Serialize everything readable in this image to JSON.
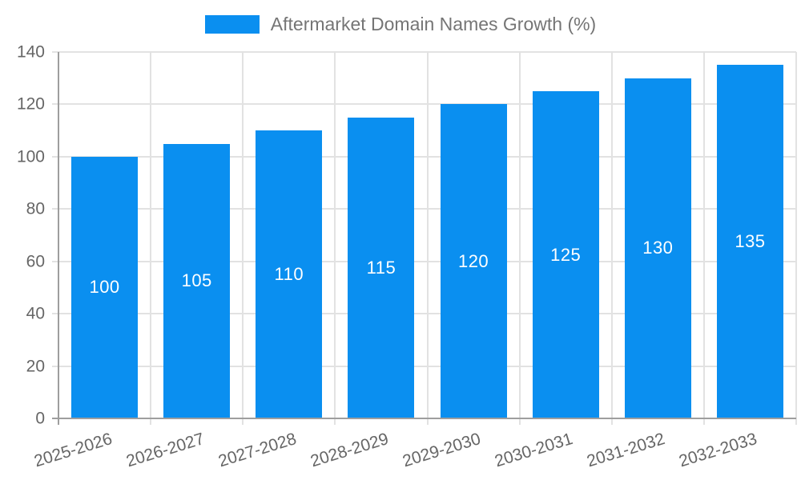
{
  "chart_data": {
    "type": "bar",
    "title": "Aftermarket Domain Names Growth (%)",
    "legend": {
      "position": "top"
    },
    "categories": [
      "2025-2026",
      "2026-2027",
      "2027-2028",
      "2028-2029",
      "2029-2030",
      "2030-2031",
      "2031-2032",
      "2032-2033"
    ],
    "values": [
      100,
      105,
      110,
      115,
      120,
      125,
      130,
      135
    ],
    "value_labels": [
      "100",
      "105",
      "110",
      "115",
      "120",
      "125",
      "130",
      "135"
    ],
    "y_tick_labels": [
      "0",
      "20",
      "40",
      "60",
      "80",
      "100",
      "120",
      "140"
    ],
    "xlabel": "",
    "ylabel": "",
    "ylim": [
      0,
      140
    ],
    "ytick_step": 20,
    "grid": true,
    "colors": {
      "bar": "#0a8ff0",
      "grid": "#e2e2e2",
      "axis": "#9e9e9e",
      "tick_text": "#666666",
      "legend_text": "#757575",
      "value_text": "#ffffff",
      "background": "#ffffff"
    }
  }
}
